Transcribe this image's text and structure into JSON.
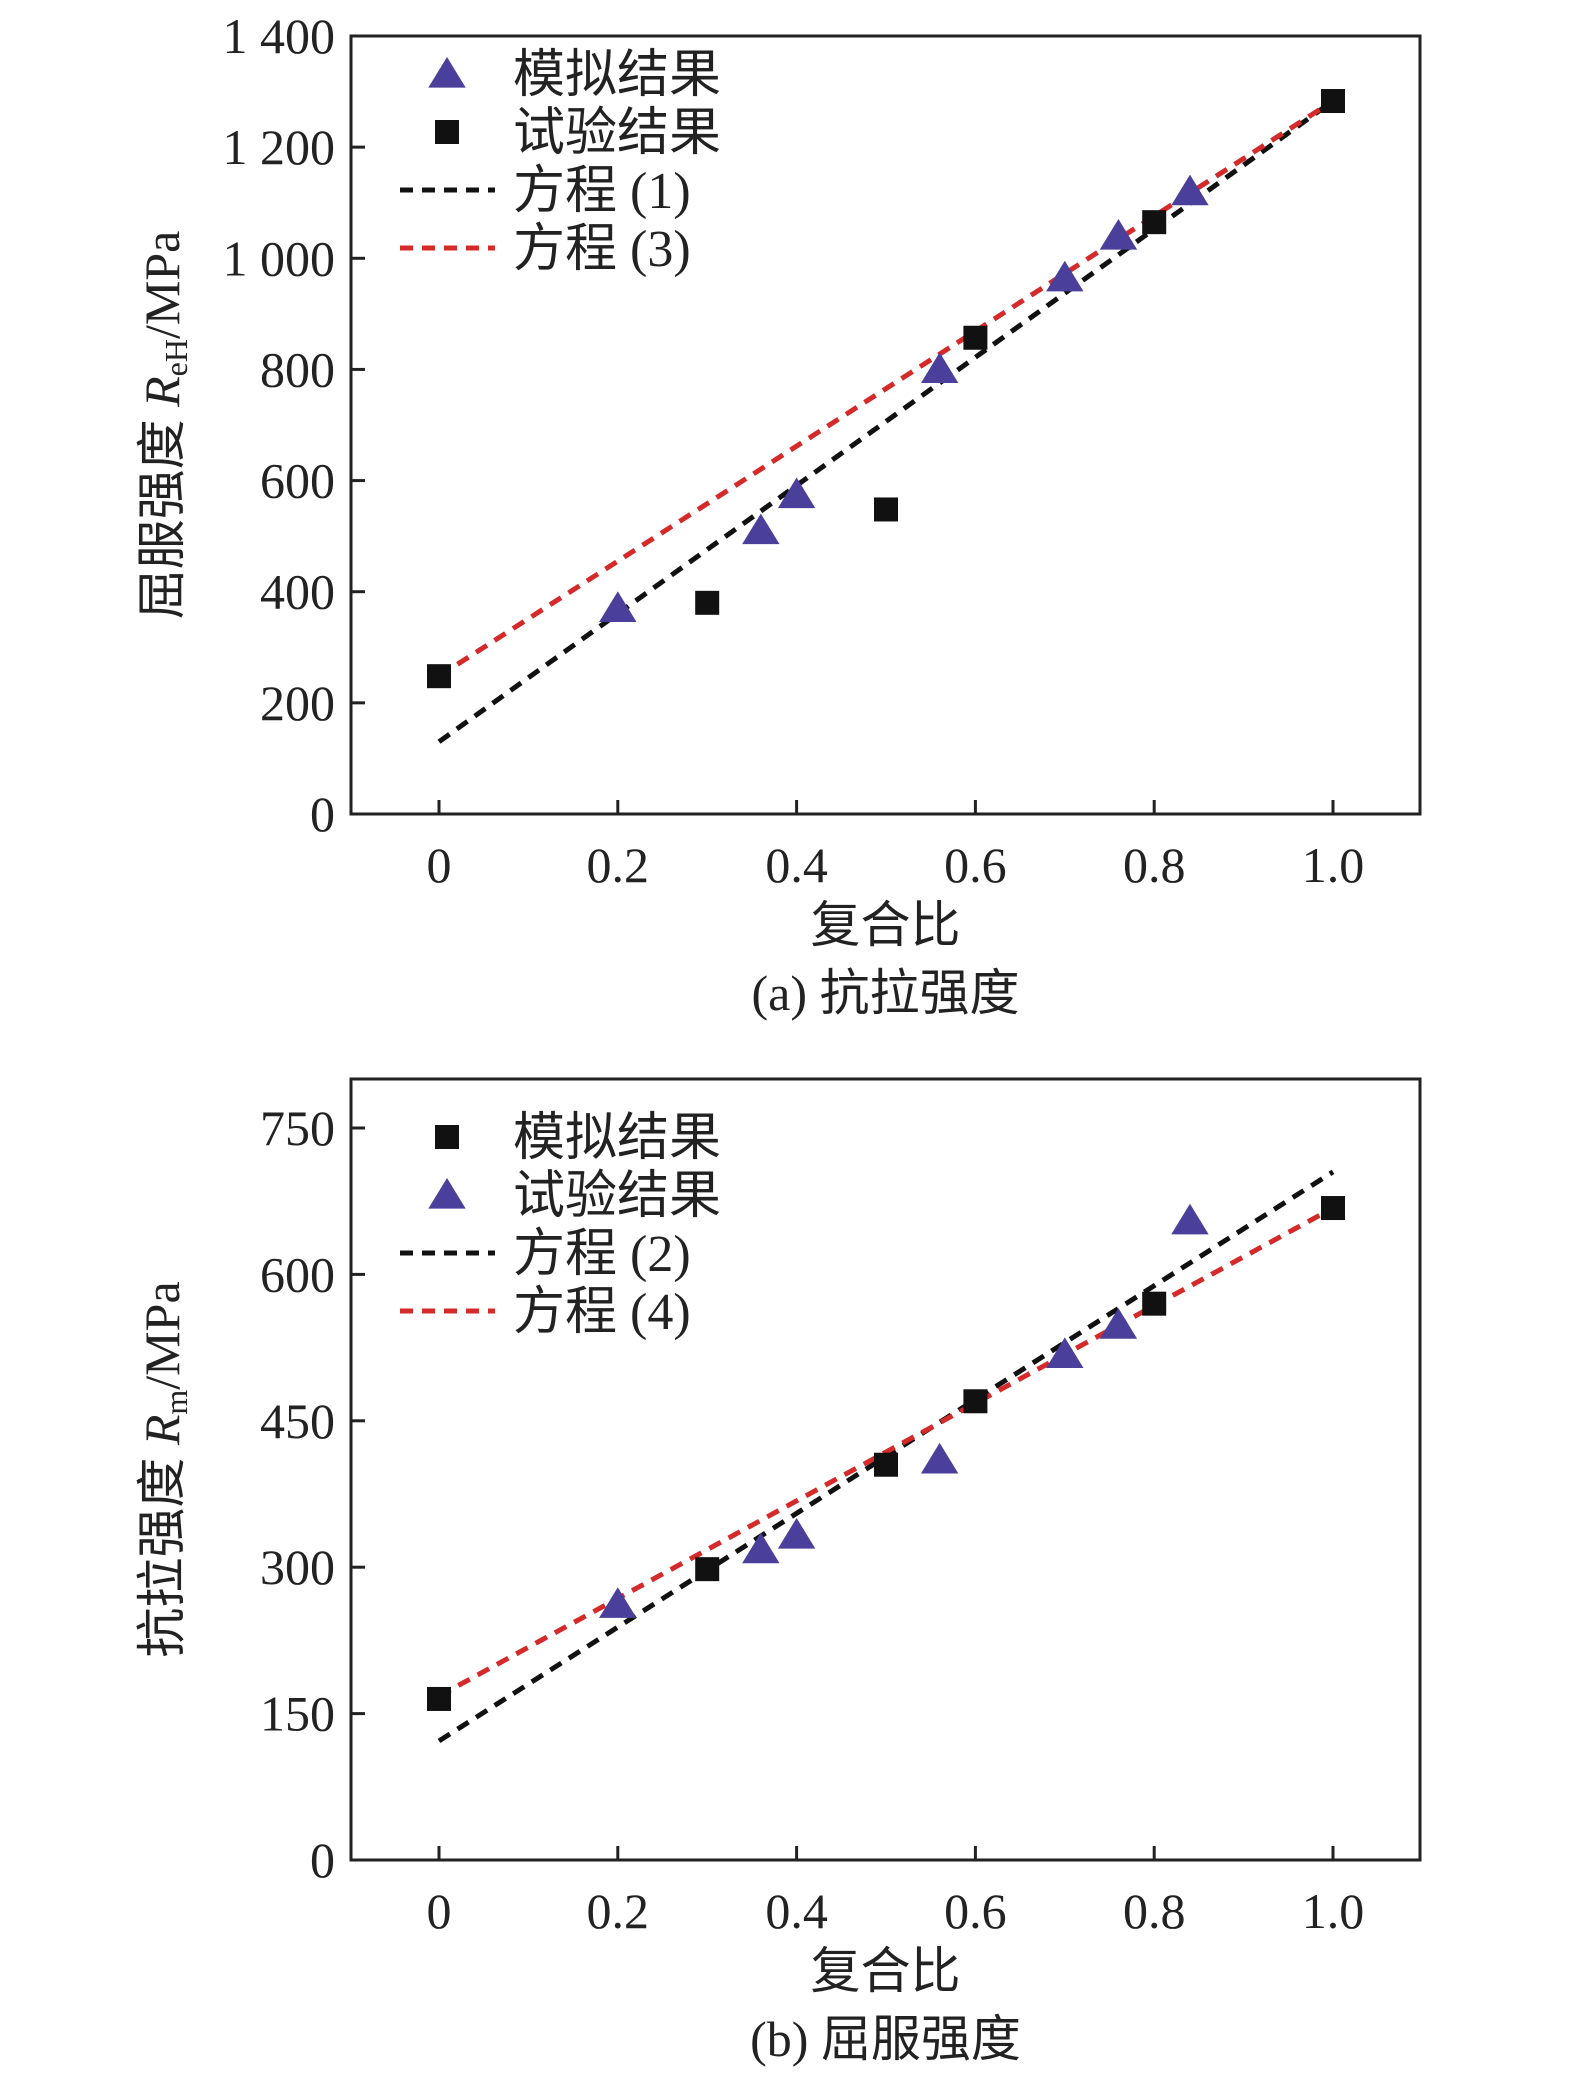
{
  "colors": {
    "triangle": "#4a3f9a",
    "square": "#111111",
    "black_line": "#111111",
    "red_line": "#d42a2a"
  },
  "chart_data": [
    {
      "type": "scatter",
      "caption": "(a) 抗拉强度",
      "xlabel": "复合比",
      "ylabel_prefix": "屈服强度 ",
      "ylabel_var": "R",
      "ylabel_sub": "eH",
      "ylabel_unit": "/MPa",
      "xlim": [
        -0.1,
        1.1
      ],
      "ylim": [
        0,
        1400
      ],
      "xticks": [
        0,
        0.2,
        0.4,
        0.6,
        0.8,
        1.0
      ],
      "xtick_labels": [
        "0",
        "0.2",
        "0.4",
        "0.6",
        "0.8",
        "1.0"
      ],
      "yticks": [
        0,
        200,
        400,
        600,
        800,
        1000,
        1200,
        1400
      ],
      "ytick_labels": [
        "0",
        "200",
        "400",
        "600",
        "800",
        "1 000",
        "1 200",
        "1 400"
      ],
      "legend_position": "top-left",
      "series": [
        {
          "name": "模拟结果",
          "marker": "triangle",
          "x": [
            0.2,
            0.36,
            0.4,
            0.56,
            0.7,
            0.76,
            0.84
          ],
          "y": [
            370,
            510,
            575,
            800,
            965,
            1040,
            1120
          ]
        },
        {
          "name": "试验结果",
          "marker": "square",
          "x": [
            0,
            0.3,
            0.5,
            0.6,
            0.8,
            1.0
          ],
          "y": [
            248,
            380,
            548,
            857,
            1065,
            1283
          ]
        },
        {
          "name": "方程 (1)",
          "marker": "black-dash",
          "x": [
            0,
            1.0
          ],
          "y": [
            130,
            1283
          ]
        },
        {
          "name": "方程 (3)",
          "marker": "red-dash",
          "x": [
            0,
            1.0
          ],
          "y": [
            248,
            1283
          ]
        }
      ]
    },
    {
      "type": "scatter",
      "caption": "(b) 屈服强度",
      "xlabel": "复合比",
      "ylabel_prefix": "抗拉强度 ",
      "ylabel_var": "R",
      "ylabel_sub": "m",
      "ylabel_unit": "/MPa",
      "xlim": [
        -0.1,
        1.1
      ],
      "ylim": [
        0,
        825
      ],
      "xticks": [
        0,
        0.2,
        0.4,
        0.6,
        0.8,
        1.0
      ],
      "xtick_labels": [
        "0",
        "0.2",
        "0.4",
        "0.6",
        "0.8",
        "1.0"
      ],
      "yticks": [
        0,
        150,
        300,
        450,
        600,
        750
      ],
      "ytick_labels": [
        "0",
        "150",
        "300",
        "450",
        "600",
        "750"
      ],
      "legend_position": "top-left",
      "series": [
        {
          "name": "模拟结果",
          "marker": "square",
          "x": [
            0,
            0.3,
            0.5,
            0.6,
            0.8,
            1.0
          ],
          "y": [
            165,
            298,
            405,
            470,
            570,
            668
          ]
        },
        {
          "name": "试验结果",
          "marker": "triangle",
          "x": [
            0.2,
            0.36,
            0.4,
            0.56,
            0.7,
            0.76,
            0.84
          ],
          "y": [
            262,
            318,
            333,
            410,
            518,
            548,
            655
          ]
        },
        {
          "name": "方程 (2)",
          "marker": "black-dash",
          "x": [
            0,
            1.0
          ],
          "y": [
            122,
            705
          ]
        },
        {
          "name": "方程 (4)",
          "marker": "red-dash",
          "x": [
            0,
            1.0
          ],
          "y": [
            168,
            668
          ]
        }
      ]
    }
  ]
}
